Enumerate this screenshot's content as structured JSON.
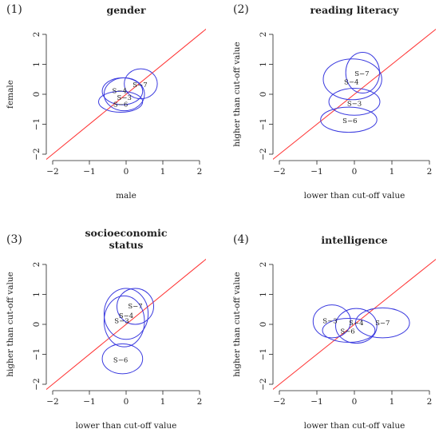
{
  "colors": {
    "ellipse": "#3a3adf",
    "diagonal": "#ff3030",
    "axis": "#222222"
  },
  "chart_data": [
    {
      "type": "scatter",
      "panel_label": "(1)",
      "title": "gender",
      "title2": "",
      "xlabel": "male",
      "ylabel": "female",
      "xlim": [
        -2,
        2
      ],
      "ylim": [
        -2,
        2
      ],
      "xticks": [
        "−2",
        "−1",
        "0",
        "1",
        "2"
      ],
      "yticks": [
        "−2",
        "−1",
        "0",
        "1",
        "2"
      ],
      "reference_line": "y = x",
      "ellipses": [
        {
          "label": "S−7",
          "cx": 0.4,
          "cy": 0.35,
          "rx": 0.45,
          "ry": 0.5,
          "lx": 0.38,
          "ly": 0.32
        },
        {
          "label": "S−4",
          "cx": -0.1,
          "cy": 0.1,
          "rx": 0.55,
          "ry": 0.45,
          "lx": -0.18,
          "ly": 0.12
        },
        {
          "label": "S−3",
          "cx": -0.05,
          "cy": 0.0,
          "rx": 0.55,
          "ry": 0.55,
          "lx": -0.05,
          "ly": -0.1
        },
        {
          "label": "S−6",
          "cx": -0.15,
          "cy": -0.25,
          "rx": 0.6,
          "ry": 0.35,
          "lx": -0.15,
          "ly": -0.33
        }
      ]
    },
    {
      "type": "scatter",
      "panel_label": "(2)",
      "title": "reading literacy",
      "title2": "",
      "xlabel": "lower than cut-off value",
      "ylabel": "higher than cut-off value",
      "xlim": [
        -2,
        2
      ],
      "ylim": [
        -2,
        2
      ],
      "xticks": [
        "−2",
        "−1",
        "0",
        "1",
        "2"
      ],
      "yticks": [
        "−2",
        "−1",
        "0",
        "1",
        "2"
      ],
      "reference_line": "y = x",
      "ellipses": [
        {
          "label": "S−7",
          "cx": 0.22,
          "cy": 0.72,
          "rx": 0.45,
          "ry": 0.68,
          "lx": 0.2,
          "ly": 0.7
        },
        {
          "label": "S−4",
          "cx": -0.05,
          "cy": 0.5,
          "rx": 0.78,
          "ry": 0.68,
          "lx": -0.08,
          "ly": 0.42
        },
        {
          "label": "S−3",
          "cx": 0.0,
          "cy": -0.25,
          "rx": 0.68,
          "ry": 0.45,
          "lx": 0.0,
          "ly": -0.3
        },
        {
          "label": "S−6",
          "cx": -0.15,
          "cy": -0.85,
          "rx": 0.75,
          "ry": 0.42,
          "lx": -0.12,
          "ly": -0.88
        }
      ]
    },
    {
      "type": "scatter",
      "panel_label": "(3)",
      "title": "socioeconomic",
      "title2": "status",
      "xlabel": "lower than cut-off value",
      "ylabel": "higher than cut-off value",
      "xlim": [
        -2,
        2
      ],
      "ylim": [
        -2,
        2
      ],
      "xticks": [
        "−2",
        "−1",
        "0",
        "1",
        "2"
      ],
      "yticks": [
        "−2",
        "−1",
        "0",
        "1",
        "2"
      ],
      "reference_line": "y = x",
      "ellipses": [
        {
          "label": "S−7",
          "cx": 0.25,
          "cy": 0.6,
          "rx": 0.5,
          "ry": 0.6,
          "lx": 0.25,
          "ly": 0.62
        },
        {
          "label": "S−4",
          "cx": 0.0,
          "cy": 0.35,
          "rx": 0.6,
          "ry": 0.85,
          "lx": 0.0,
          "ly": 0.3
        },
        {
          "label": "S−3",
          "cx": -0.05,
          "cy": 0.1,
          "rx": 0.55,
          "ry": 0.85,
          "lx": -0.12,
          "ly": 0.12
        },
        {
          "label": "S−6",
          "cx": -0.1,
          "cy": -1.15,
          "rx": 0.55,
          "ry": 0.5,
          "lx": -0.15,
          "ly": -1.18
        }
      ]
    },
    {
      "type": "scatter",
      "panel_label": "(4)",
      "title": "intelligence",
      "title2": "",
      "xlabel": "lower than cut-off value",
      "ylabel": "higher than cut-off value",
      "xlim": [
        -2,
        2
      ],
      "ylim": [
        -2,
        2
      ],
      "xticks": [
        "−2",
        "−1",
        "0",
        "1",
        "2"
      ],
      "yticks": [
        "−2",
        "−1",
        "0",
        "1",
        "2"
      ],
      "reference_line": "y = x",
      "ellipses": [
        {
          "label": "S−7",
          "cx": 0.75,
          "cy": 0.05,
          "rx": 0.72,
          "ry": 0.5,
          "lx": 0.75,
          "ly": 0.05
        },
        {
          "label": "S−4",
          "cx": 0.05,
          "cy": -0.05,
          "rx": 0.55,
          "ry": 0.58,
          "lx": 0.05,
          "ly": 0.05
        },
        {
          "label": "S−3",
          "cx": -0.6,
          "cy": 0.1,
          "rx": 0.5,
          "ry": 0.55,
          "lx": -0.65,
          "ly": 0.12
        },
        {
          "label": "S−6",
          "cx": -0.15,
          "cy": -0.2,
          "rx": 0.7,
          "ry": 0.4,
          "lx": -0.18,
          "ly": -0.22
        }
      ]
    }
  ]
}
